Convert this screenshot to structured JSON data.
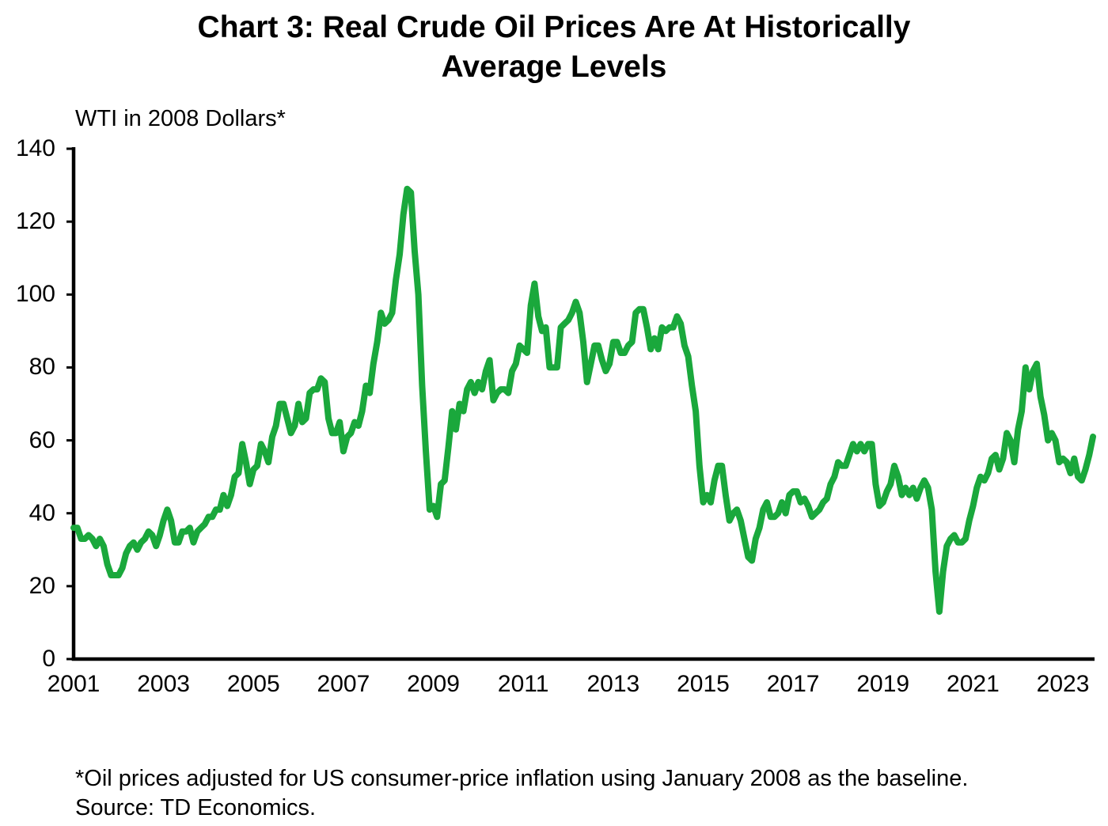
{
  "header": {
    "title_line1": "Chart 3: Real Crude Oil Prices Are At Historically",
    "title_line2": "Average Levels"
  },
  "axes": {
    "y_axis_title": "WTI in 2008 Dollars*",
    "y_tick_labels": [
      "0",
      "20",
      "40",
      "60",
      "80",
      "100",
      "120",
      "140"
    ],
    "x_tick_labels": [
      "2001",
      "2003",
      "2005",
      "2007",
      "2009",
      "2011",
      "2013",
      "2015",
      "2017",
      "2019",
      "2021",
      "2023"
    ]
  },
  "footnote": {
    "line1": "*Oil prices adjusted for US consumer-price inflation using January 2008 as the baseline.",
    "line2": "Source: TD Economics."
  },
  "colors": {
    "line": "#1aa83c",
    "axis": "#000000",
    "text": "#000000"
  },
  "chart_data": {
    "type": "line",
    "title": "Chart 3: Real Crude Oil Prices Are At Historically Average Levels",
    "xlabel": "",
    "ylabel": "WTI in 2008 Dollars*",
    "ylim": [
      0,
      140
    ],
    "y_ticks": [
      0,
      20,
      40,
      60,
      80,
      100,
      120,
      140
    ],
    "x_ticks_years": [
      2001,
      2003,
      2005,
      2007,
      2009,
      2011,
      2013,
      2015,
      2017,
      2019,
      2021,
      2023
    ],
    "grid": false,
    "legend_position": "none",
    "frequency": "monthly",
    "x_start": "2001-01",
    "x_end": "2023-09",
    "series": [
      {
        "name": "WTI crude oil price in January-2008 dollars",
        "unit": "USD per barrel (2008 dollars)",
        "color": "#1aa83c",
        "values": [
          36,
          36,
          33,
          33,
          34,
          33,
          31,
          33,
          31,
          26,
          23,
          23,
          23,
          25,
          29,
          31,
          32,
          30,
          32,
          33,
          35,
          34,
          31,
          34,
          38,
          41,
          38,
          32,
          32,
          35,
          35,
          36,
          32,
          35,
          36,
          37,
          39,
          39,
          41,
          41,
          45,
          42,
          45,
          50,
          51,
          59,
          54,
          48,
          52,
          53,
          59,
          57,
          54,
          61,
          64,
          70,
          70,
          66,
          62,
          64,
          70,
          65,
          66,
          73,
          74,
          74,
          77,
          76,
          66,
          62,
          62,
          65,
          57,
          61,
          62,
          65,
          64,
          68,
          75,
          73,
          81,
          87,
          95,
          92,
          93,
          95,
          104,
          111,
          122,
          129,
          128,
          112,
          100,
          75,
          57,
          41,
          42,
          39,
          48,
          49,
          58,
          68,
          63,
          70,
          68,
          74,
          76,
          73,
          76,
          74,
          79,
          82,
          71,
          73,
          74,
          74,
          73,
          79,
          81,
          86,
          85,
          84,
          97,
          103,
          94,
          90,
          91,
          80,
          80,
          80,
          91,
          92,
          93,
          95,
          98,
          95,
          87,
          76,
          81,
          86,
          86,
          82,
          79,
          81,
          87,
          87,
          84,
          84,
          86,
          87,
          95,
          96,
          96,
          91,
          85,
          88,
          85,
          91,
          90,
          91,
          91,
          94,
          92,
          86,
          83,
          75,
          68,
          53,
          43,
          45,
          43,
          49,
          53,
          53,
          45,
          38,
          40,
          41,
          38,
          33,
          28,
          27,
          33,
          36,
          41,
          43,
          39,
          39,
          40,
          43,
          40,
          45,
          46,
          46,
          43,
          44,
          42,
          39,
          40,
          41,
          43,
          44,
          48,
          50,
          54,
          53,
          53,
          56,
          59,
          57,
          59,
          57,
          59,
          59,
          48,
          42,
          43,
          46,
          48,
          53,
          50,
          45,
          47,
          45,
          47,
          44,
          47,
          49,
          47,
          41,
          24,
          13,
          24,
          31,
          33,
          34,
          32,
          32,
          33,
          38,
          42,
          47,
          50,
          49,
          51,
          55,
          56,
          52,
          55,
          62,
          60,
          54,
          63,
          68,
          80,
          74,
          79,
          81,
          72,
          67,
          60,
          62,
          60,
          54,
          55,
          54,
          51,
          55,
          50,
          49,
          52,
          56,
          61
        ]
      }
    ]
  }
}
